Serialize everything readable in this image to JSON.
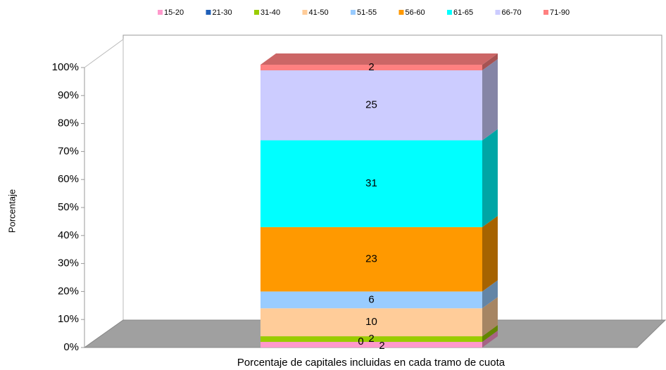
{
  "chart_data": {
    "type": "bar",
    "stacked": true,
    "x_label": "Porcentaje de capitales incluidas en cada tramo de cuota",
    "y_label": "Porcentaje",
    "categories": [
      null
    ],
    "series": [
      {
        "name": "15-20",
        "color": "#ff99cc",
        "values": [
          2
        ]
      },
      {
        "name": "21-30",
        "color": "#1f5fb8",
        "values": [
          0
        ]
      },
      {
        "name": "31-40",
        "color": "#99cc00",
        "values": [
          2
        ]
      },
      {
        "name": "41-50",
        "color": "#ffcc99",
        "values": [
          10
        ]
      },
      {
        "name": "51-55",
        "color": "#99ccff",
        "values": [
          6
        ]
      },
      {
        "name": "56-60",
        "color": "#ff9900",
        "values": [
          23
        ]
      },
      {
        "name": "61-65",
        "color": "#00ffff",
        "values": [
          31
        ]
      },
      {
        "name": "66-70",
        "color": "#ccccff",
        "values": [
          25
        ]
      },
      {
        "name": "71-90",
        "color": "#ff8080",
        "values": [
          2
        ]
      }
    ],
    "ylim": [
      0,
      100
    ],
    "yticks": [
      {
        "value": 0,
        "label": "0%"
      },
      {
        "value": 10,
        "label": "10%"
      },
      {
        "value": 20,
        "label": "20%"
      },
      {
        "value": 30,
        "label": "30%"
      },
      {
        "value": 40,
        "label": "40%"
      },
      {
        "value": 50,
        "label": "50%"
      },
      {
        "value": 60,
        "label": "60%"
      },
      {
        "value": 70,
        "label": "70%"
      },
      {
        "value": 80,
        "label": "80%"
      },
      {
        "value": 90,
        "label": "90%"
      },
      {
        "value": 100,
        "label": "100%"
      }
    ],
    "grid": false,
    "legend": "top"
  }
}
